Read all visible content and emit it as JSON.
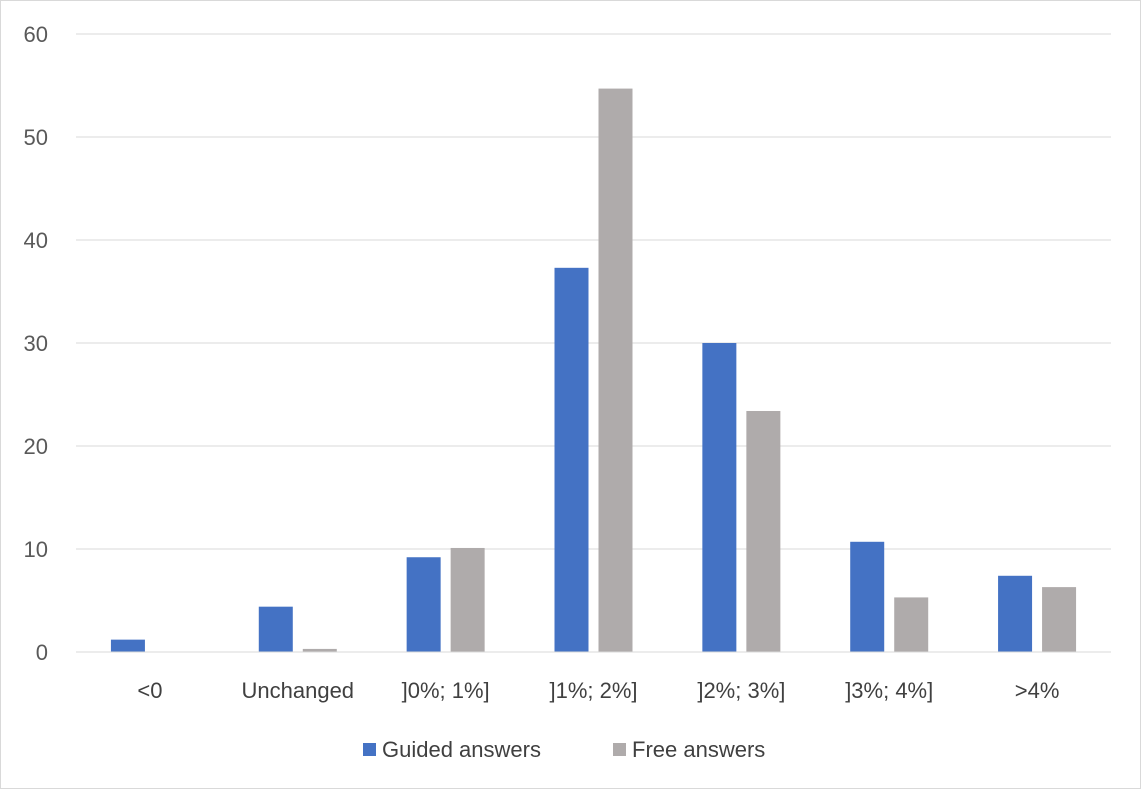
{
  "chart_data": {
    "type": "bar",
    "categories": [
      "<0",
      "Unchanged",
      "]0%; 1%]",
      "]1%; 2%]",
      "]2%; 3%]",
      "]3%; 4%]",
      ">4%"
    ],
    "series": [
      {
        "name": "Guided answers",
        "color": "#4472c4",
        "values": [
          1.2,
          4.4,
          9.2,
          37.3,
          30.0,
          10.7,
          7.4
        ]
      },
      {
        "name": "Free answers",
        "color": "#afabab",
        "values": [
          0.0,
          0.3,
          10.1,
          54.7,
          23.4,
          5.3,
          6.3
        ]
      }
    ],
    "title": "",
    "xlabel": "",
    "ylabel": "",
    "ylim": [
      0,
      60
    ],
    "yticks": [
      0,
      10,
      20,
      30,
      40,
      50,
      60
    ],
    "grid": true,
    "legend_position": "bottom"
  }
}
